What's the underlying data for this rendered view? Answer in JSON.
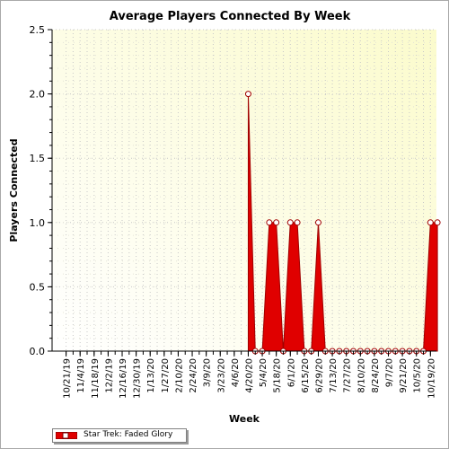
{
  "chart_data": {
    "type": "area",
    "title": "Average Players Connected By Week",
    "xlabel": "Week",
    "ylabel": "Players Connected",
    "ylim": [
      0,
      2.5
    ],
    "yticks": [
      "0.0",
      "0.5",
      "1.0",
      "1.5",
      "2.0",
      "2.5"
    ],
    "x_tick_labels": [
      "10/21/19",
      "11/4/19",
      "11/18/19",
      "12/2/19",
      "12/16/19",
      "12/30/19",
      "1/13/20",
      "1/27/20",
      "2/10/20",
      "2/24/20",
      "3/9/20",
      "3/23/20",
      "4/6/20",
      "4/20/20",
      "5/4/20",
      "5/18/20",
      "6/1/20",
      "6/15/20",
      "6/29/20",
      "7/13/20",
      "7/27/20",
      "8/10/20",
      "8/24/20",
      "9/7/20",
      "9/21/20",
      "10/5/20",
      "10/19/20"
    ],
    "grid": true,
    "legend_position": "bottom-left",
    "series": [
      {
        "name": "Star Trek: Faded Glory",
        "color": "#e00000",
        "weeks": [
          "4/20/20",
          "4/27/20",
          "5/4/20",
          "5/11/20",
          "5/18/20",
          "5/25/20",
          "6/1/20",
          "6/8/20",
          "6/15/20",
          "6/22/20",
          "6/29/20",
          "7/6/20",
          "7/13/20",
          "7/20/20",
          "7/27/20",
          "8/3/20",
          "8/10/20",
          "8/17/20",
          "8/24/20",
          "8/31/20",
          "9/7/20",
          "9/14/20",
          "9/21/20",
          "9/28/20",
          "10/5/20",
          "10/12/20",
          "10/19/20",
          "10/26/20"
        ],
        "values": [
          2.0,
          0.0,
          0.0,
          1.0,
          1.0,
          0.0,
          1.0,
          1.0,
          0.0,
          0.0,
          1.0,
          0.0,
          0.0,
          0.0,
          0.0,
          0.0,
          0.0,
          0.0,
          0.0,
          0.0,
          0.0,
          0.0,
          0.0,
          0.0,
          0.0,
          0.0,
          1.0,
          1.0
        ]
      }
    ]
  }
}
